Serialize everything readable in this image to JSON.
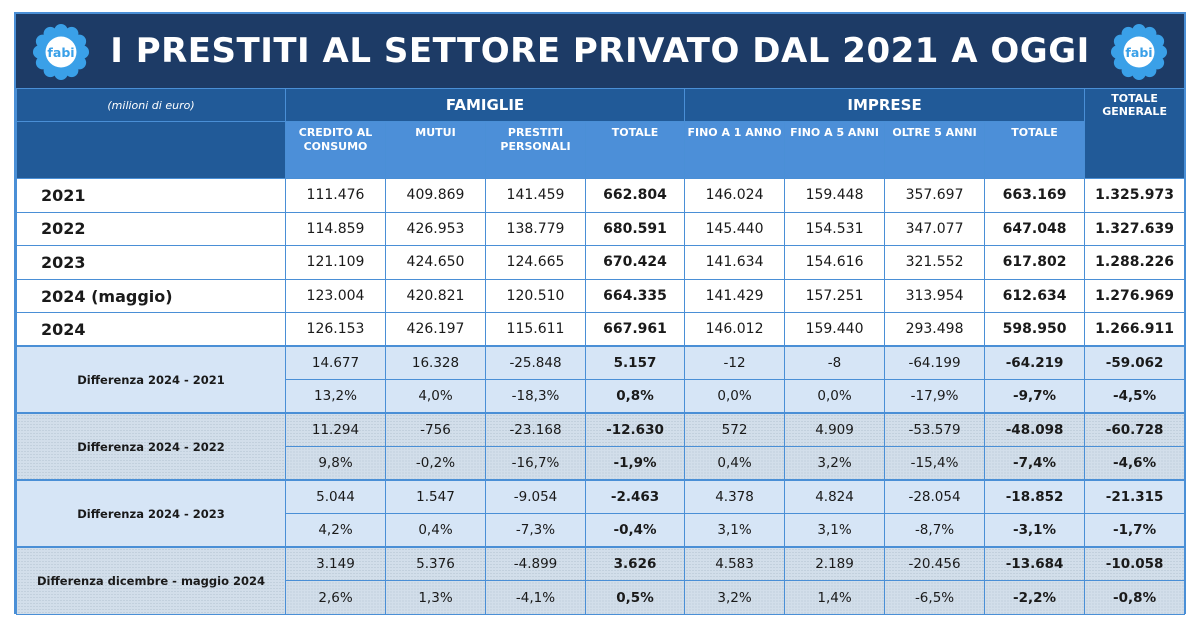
{
  "title": "I PRESTITI AL SETTORE PRIVATO DAL 2021 A OGGI",
  "logo": {
    "text": "fabi",
    "icon": "fabi-flower-logo",
    "petal_color": "#3aa0e8"
  },
  "colors": {
    "title_bg": "#1d3b66",
    "header_dark": "#215a98",
    "header_light": "#4c8fd8",
    "border": "#4a8fd6",
    "diff_bg": "#d6e5f6"
  },
  "header": {
    "unit": "(milioni di euro)",
    "groups": [
      "FAMIGLIE",
      "IMPRESE"
    ],
    "total_general": "TOTALE GENERALE",
    "columns": [
      "CREDITO AL CONSUMO",
      "MUTUI",
      "PRESTITI PERSONALI",
      "TOTALE",
      "FINO A 1 ANNO",
      "FINO A 5 ANNI",
      "OLTRE 5 ANNI",
      "TOTALE"
    ]
  },
  "rows": [
    {
      "label": "2021",
      "values": [
        "111.476",
        "409.869",
        "141.459",
        "662.804",
        "146.024",
        "159.448",
        "357.697",
        "663.169",
        "1.325.973"
      ]
    },
    {
      "label": "2022",
      "values": [
        "114.859",
        "426.953",
        "138.779",
        "680.591",
        "145.440",
        "154.531",
        "347.077",
        "647.048",
        "1.327.639"
      ]
    },
    {
      "label": "2023",
      "values": [
        "121.109",
        "424.650",
        "124.665",
        "670.424",
        "141.634",
        "154.616",
        "321.552",
        "617.802",
        "1.288.226"
      ]
    },
    {
      "label": "2024 (maggio)",
      "values": [
        "123.004",
        "420.821",
        "120.510",
        "664.335",
        "141.429",
        "157.251",
        "313.954",
        "612.634",
        "1.276.969"
      ]
    },
    {
      "label": "2024",
      "values": [
        "126.153",
        "426.197",
        "115.611",
        "667.961",
        "146.012",
        "159.440",
        "293.498",
        "598.950",
        "1.266.911"
      ]
    }
  ],
  "differences": [
    {
      "label": "Differenza 2024 - 2021",
      "abs": [
        "14.677",
        "16.328",
        "-25.848",
        "5.157",
        "-12",
        "-8",
        "-64.199",
        "-64.219",
        "-59.062"
      ],
      "pct": [
        "13,2%",
        "4,0%",
        "-18,3%",
        "0,8%",
        "0,0%",
        "0,0%",
        "-17,9%",
        "-9,7%",
        "-4,5%"
      ]
    },
    {
      "label": "Differenza 2024 - 2022",
      "abs": [
        "11.294",
        "-756",
        "-23.168",
        "-12.630",
        "572",
        "4.909",
        "-53.579",
        "-48.098",
        "-60.728"
      ],
      "pct": [
        "9,8%",
        "-0,2%",
        "-16,7%",
        "-1,9%",
        "0,4%",
        "3,2%",
        "-15,4%",
        "-7,4%",
        "-4,6%"
      ]
    },
    {
      "label": "Differenza 2024 - 2023",
      "abs": [
        "5.044",
        "1.547",
        "-9.054",
        "-2.463",
        "4.378",
        "4.824",
        "-28.054",
        "-18.852",
        "-21.315"
      ],
      "pct": [
        "4,2%",
        "0,4%",
        "-7,3%",
        "-0,4%",
        "3,1%",
        "3,1%",
        "-8,7%",
        "-3,1%",
        "-1,7%"
      ]
    },
    {
      "label": "Differenza dicembre - maggio 2024",
      "abs": [
        "3.149",
        "5.376",
        "-4.899",
        "3.626",
        "4.583",
        "2.189",
        "-20.456",
        "-13.684",
        "-10.058"
      ],
      "pct": [
        "2,6%",
        "1,3%",
        "-4,1%",
        "0,5%",
        "3,2%",
        "1,4%",
        "-6,5%",
        "-2,2%",
        "-0,8%"
      ]
    }
  ]
}
